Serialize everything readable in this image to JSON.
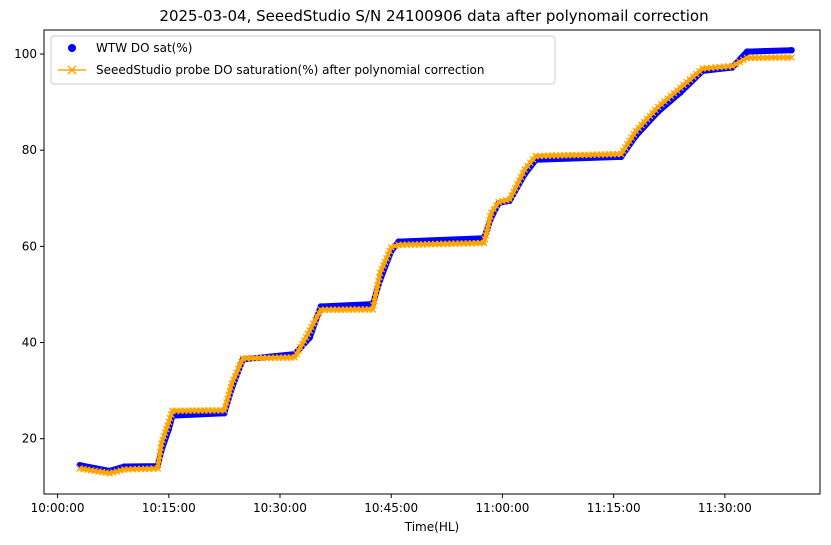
{
  "chart_data": {
    "type": "scatter",
    "title": "2025-03-04, SeeedStudio S/N 24100906 data after polynomail correction",
    "xlabel": "Time(HL)",
    "ylabel": "",
    "x_ticks": [
      "10:00:00",
      "10:15:00",
      "10:30:00",
      "10:45:00",
      "11:00:00",
      "11:15:00",
      "11:30:00"
    ],
    "y_ticks": [
      20,
      40,
      60,
      80,
      100
    ],
    "xlim": [
      "09:58:10",
      "11:42:50"
    ],
    "ylim": [
      8.5,
      105
    ],
    "legend_position": "upper-left",
    "grid": false,
    "series": [
      {
        "name": "WTW DO sat(%)",
        "marker": "circle",
        "color": "#0000ff",
        "points": [
          [
            "10:03:00",
            14.5
          ],
          [
            "10:07:00",
            13.3
          ],
          [
            "10:09:00",
            14.2
          ],
          [
            "10:13:30",
            14.3
          ],
          [
            "10:14:00",
            17.5
          ],
          [
            "10:15:00",
            22.0
          ],
          [
            "10:15:30",
            24.8
          ],
          [
            "10:22:30",
            25.3
          ],
          [
            "10:23:30",
            30.5
          ],
          [
            "10:25:00",
            36.5
          ],
          [
            "10:32:00",
            37.6
          ],
          [
            "10:34:00",
            41.0
          ],
          [
            "10:35:30",
            47.5
          ],
          [
            "10:42:30",
            48.0
          ],
          [
            "10:43:30",
            53.0
          ],
          [
            "10:45:00",
            59.0
          ],
          [
            "10:46:00",
            61.0
          ],
          [
            "10:57:30",
            61.7
          ],
          [
            "10:58:30",
            66.0
          ],
          [
            "10:59:30",
            69.0
          ],
          [
            "11:01:00",
            69.5
          ],
          [
            "11:03:00",
            75.0
          ],
          [
            "11:04:30",
            78.0
          ],
          [
            "11:16:00",
            78.6
          ],
          [
            "11:18:00",
            83.0
          ],
          [
            "11:21:00",
            88.0
          ],
          [
            "11:24:00",
            92.0
          ],
          [
            "11:27:00",
            96.5
          ],
          [
            "11:31:00",
            97.2
          ],
          [
            "11:33:00",
            100.5
          ],
          [
            "11:39:00",
            100.8
          ]
        ]
      },
      {
        "name": "SeeedStudio probe DO saturation(%) after polynomial correction",
        "marker": "x",
        "color": "#ffa500",
        "points": [
          [
            "10:03:00",
            13.8
          ],
          [
            "10:07:00",
            12.8
          ],
          [
            "10:09:00",
            13.6
          ],
          [
            "10:13:30",
            13.8
          ],
          [
            "10:14:00",
            19.0
          ],
          [
            "10:15:00",
            23.5
          ],
          [
            "10:15:30",
            25.8
          ],
          [
            "10:22:30",
            25.9
          ],
          [
            "10:23:30",
            31.5
          ],
          [
            "10:25:00",
            36.7
          ],
          [
            "10:32:00",
            36.9
          ],
          [
            "10:34:00",
            42.5
          ],
          [
            "10:35:30",
            46.8
          ],
          [
            "10:42:30",
            46.9
          ],
          [
            "10:43:30",
            54.5
          ],
          [
            "10:45:00",
            59.8
          ],
          [
            "10:46:00",
            60.3
          ],
          [
            "10:57:30",
            60.7
          ],
          [
            "10:58:30",
            67.0
          ],
          [
            "10:59:30",
            69.2
          ],
          [
            "11:01:00",
            69.8
          ],
          [
            "11:03:00",
            76.0
          ],
          [
            "11:04:30",
            78.8
          ],
          [
            "11:16:00",
            79.2
          ],
          [
            "11:18:00",
            84.0
          ],
          [
            "11:21:00",
            89.0
          ],
          [
            "11:24:00",
            93.0
          ],
          [
            "11:27:00",
            97.0
          ],
          [
            "11:31:00",
            97.5
          ],
          [
            "11:33:00",
            99.2
          ],
          [
            "11:39:00",
            99.3
          ]
        ]
      }
    ]
  }
}
